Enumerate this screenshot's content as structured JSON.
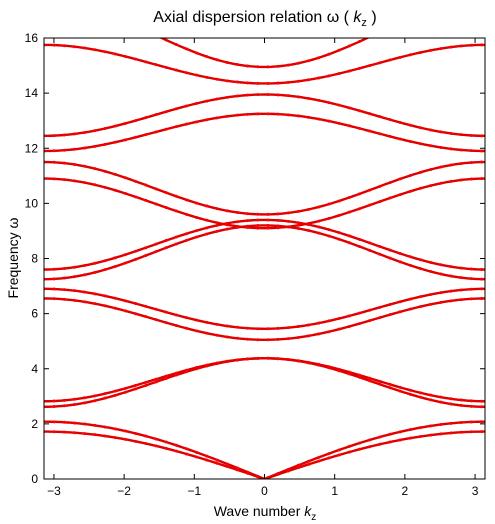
{
  "chart_data": {
    "type": "scatter",
    "title": "Axial dispersion relation ω ( k_z )",
    "title_parts": {
      "main": "Axial dispersion relation ω (",
      "var": "k",
      "sub": "z",
      "close": ")"
    },
    "xlabel": "Wave number k_z",
    "xlabel_parts": {
      "main": "Wave number",
      "var": "k",
      "sub": "z"
    },
    "ylabel": "Frequency ω",
    "xlim": [
      -3.14159,
      3.14159
    ],
    "ylim": [
      0,
      16
    ],
    "xticks": [
      -3,
      -2,
      -1,
      0,
      1,
      2,
      3
    ],
    "yticks": [
      0,
      2,
      4,
      6,
      8,
      10,
      12,
      14,
      16
    ],
    "grid": false,
    "legend": "none",
    "marker_color": "#ff0000",
    "line_color": "#dd0000",
    "bands": [
      {
        "w0": 0.0,
        "wpi": 2.08,
        "shape": "linear"
      },
      {
        "w0": 0.0,
        "wpi": 1.72,
        "shape": "linear"
      },
      {
        "w0": 4.38,
        "wpi": 2.62,
        "shape": "cos"
      },
      {
        "w0": 4.38,
        "wpi": 2.82,
        "shape": "cos"
      },
      {
        "w0": 5.05,
        "wpi": 6.55,
        "shape": "cos"
      },
      {
        "w0": 5.45,
        "wpi": 6.9,
        "shape": "cos"
      },
      {
        "w0": 9.2,
        "wpi": 7.25,
        "shape": "cos"
      },
      {
        "w0": 9.4,
        "wpi": 7.6,
        "shape": "cos"
      },
      {
        "w0": 9.1,
        "wpi": 10.9,
        "shape": "cos"
      },
      {
        "w0": 9.6,
        "wpi": 11.5,
        "shape": "cos"
      },
      {
        "w0": 13.25,
        "wpi": 11.9,
        "shape": "cos"
      },
      {
        "w0": 13.95,
        "wpi": 12.45,
        "shape": "cos"
      },
      {
        "w0": 14.35,
        "wpi": 15.75,
        "shape": "cos"
      },
      {
        "w0": 14.95,
        "wpi": 17.3,
        "shape": "cos"
      }
    ]
  }
}
